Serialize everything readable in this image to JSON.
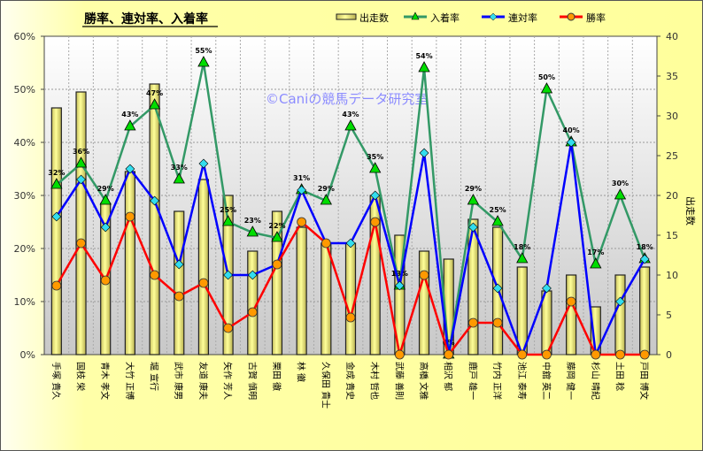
{
  "chart_data": {
    "type": "bar+line",
    "title": "勝率、連対率、入着率",
    "watermark": "©Caniの競馬データ研究室",
    "categories": [
      "手塚 貴久",
      "国枝 栄",
      "青木 孝文",
      "大竹 正博",
      "堀 宣行",
      "武市 康男",
      "友道 康夫",
      "矢作 芳人",
      "古賀 慎明",
      "栗田 徹",
      "林 徹",
      "久保田 貴士",
      "金成 貴史",
      "木村 哲也",
      "武藤 善則",
      "高橋 文雅",
      "相沢 郁",
      "鹿戸 雄一",
      "竹内 正洋",
      "池江 泰寿",
      "中舘 英二",
      "藤岡 健一",
      "杉山 晴紀",
      "土田 稔",
      "戸田 博文"
    ],
    "series": [
      {
        "name": "出走数",
        "type": "bar",
        "axis": "right",
        "color": "#ffff99",
        "values": [
          31,
          33,
          19,
          23,
          34,
          18,
          22,
          20,
          13,
          18,
          16,
          14,
          14,
          20,
          15,
          13,
          12,
          17,
          16,
          11,
          8,
          10,
          6,
          10,
          11
        ]
      },
      {
        "name": "入着率",
        "type": "line",
        "axis": "left",
        "color": "#339966",
        "marker": "triangle",
        "marker_color": "#00dd00",
        "values": [
          32,
          36,
          29,
          43,
          47,
          33,
          55,
          25,
          23,
          22,
          31,
          29,
          43,
          35,
          13,
          54,
          0,
          29,
          25,
          18,
          50,
          40,
          17,
          30,
          18
        ],
        "labels": [
          "32%",
          "36%",
          "29%",
          "43%",
          "47%",
          "33%",
          "55%",
          "25%",
          "23%",
          "22%",
          "31%",
          "29%",
          "43%",
          "35%",
          "13%",
          "54%",
          "0%",
          "29%",
          "25%",
          "18%",
          "50%",
          "40%",
          "17%",
          "30%",
          "18%"
        ]
      },
      {
        "name": "連対率",
        "type": "line",
        "axis": "left",
        "color": "#0000ff",
        "marker": "diamond",
        "marker_color": "#33ddee",
        "values": [
          26,
          33,
          24,
          35,
          29,
          17,
          36,
          15,
          15,
          17,
          31,
          21,
          21,
          30,
          13,
          38,
          0,
          24,
          12.5,
          0,
          12.5,
          40,
          0,
          10,
          18
        ]
      },
      {
        "name": "勝率",
        "type": "line",
        "axis": "left",
        "color": "#ff0000",
        "marker": "circle",
        "marker_color": "#ff9900",
        "values": [
          13,
          21,
          14,
          26,
          15,
          11,
          13.5,
          5,
          8,
          17,
          25,
          21,
          7,
          25,
          0,
          15,
          0,
          6,
          6,
          0,
          0,
          10,
          0,
          0,
          0
        ]
      }
    ],
    "y_left": {
      "ylim": [
        0,
        60
      ],
      "ticks": [
        "0%",
        "10%",
        "20%",
        "30%",
        "40%",
        "50%",
        "60%"
      ]
    },
    "y_right": {
      "ylim": [
        0,
        40
      ],
      "ticks": [
        "0",
        "5",
        "10",
        "15",
        "20",
        "25",
        "30",
        "35",
        "40"
      ],
      "label": "出走数"
    },
    "legend_position": "top-right",
    "grid": true
  }
}
